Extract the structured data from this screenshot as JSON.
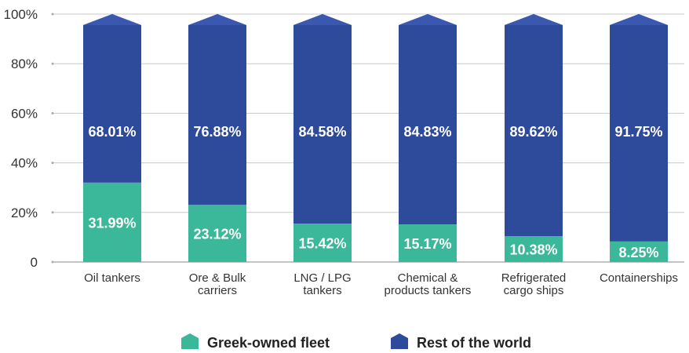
{
  "chart_data": {
    "type": "bar",
    "stacked": true,
    "categories": [
      [
        "Oil tankers"
      ],
      [
        "Ore & Bulk",
        "carriers"
      ],
      [
        "LNG / LPG",
        "tankers"
      ],
      [
        "Chemical &",
        "products tankers"
      ],
      [
        "Refrigerated",
        "cargo ships"
      ],
      [
        "Containerships"
      ]
    ],
    "series": [
      {
        "name": "Greek-owned fleet",
        "color": "#3bb89a",
        "values": [
          31.99,
          23.12,
          15.42,
          15.17,
          10.38,
          8.25
        ],
        "labels": [
          "31.99%",
          "23.12%",
          "15.42%",
          "15.17%",
          "10.38%",
          "8.25%"
        ]
      },
      {
        "name": "Rest of the world",
        "color": "#2e4a9b",
        "values": [
          68.01,
          76.88,
          84.58,
          84.83,
          89.62,
          91.75
        ],
        "labels": [
          "68.01%",
          "76.88%",
          "84.58%",
          "84.83%",
          "89.62%",
          "91.75%"
        ]
      }
    ],
    "ylim": [
      0,
      100
    ],
    "yticks": [
      0,
      20,
      40,
      60,
      80,
      100
    ],
    "ytick_labels": [
      "0",
      "20%",
      "40%",
      "60%",
      "80%",
      "100%"
    ],
    "grid": true,
    "legend_position": "bottom"
  }
}
